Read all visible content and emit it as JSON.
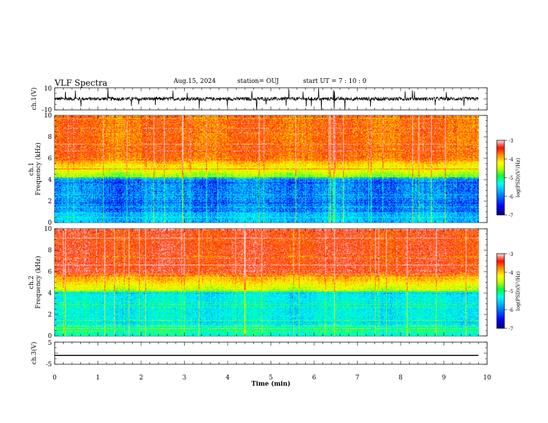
{
  "header": {
    "title": "VLF Spectra",
    "date": "Aug.15, 2024",
    "station": "station= OUJ",
    "start": "start  UT  =   7  : 10 : 0"
  },
  "chart_data": [
    {
      "type": "line",
      "name": "ch1-waveform",
      "ylabel": "ch.1(V)",
      "ylim": [
        -10,
        10
      ],
      "yticks": [
        "10",
        "-10"
      ],
      "xlim": [
        0,
        10
      ],
      "data_extent_x": 9.8
    },
    {
      "type": "heatmap",
      "name": "ch1-spectrogram",
      "ylabel_line1": "ch.1",
      "ylabel_line2": "Frequency  (kHz)",
      "ylim": [
        0,
        10
      ],
      "yticks": [
        0,
        2,
        4,
        6,
        8,
        10
      ],
      "xlim": [
        0,
        10
      ],
      "data_extent_x": 9.8,
      "colorbar": {
        "label": "log(PSD)(V²/Hz)",
        "range": [
          -7,
          -3
        ],
        "ticks": [
          "-3",
          "-4",
          "-5",
          "-6",
          "-7"
        ]
      }
    },
    {
      "type": "heatmap",
      "name": "ch2-spectrogram",
      "ylabel_line1": "ch.2",
      "ylabel_line2": "Frequency  (kHz)",
      "ylim": [
        0,
        10
      ],
      "yticks": [
        0,
        2,
        4,
        6,
        8,
        10
      ],
      "xlim": [
        0,
        10
      ],
      "data_extent_x": 9.8,
      "colorbar": {
        "label": "log(PSD)(V²/Hz)",
        "range": [
          -7,
          -3
        ],
        "ticks": [
          "-3",
          "-4",
          "-5",
          "-6",
          "-7"
        ]
      }
    },
    {
      "type": "line",
      "name": "ch3-waveform",
      "ylabel": "ch.3(V)",
      "ylim": [
        -5,
        5
      ],
      "yticks": [
        "5",
        "-5"
      ],
      "xlim": [
        0,
        10
      ],
      "constant_value": -1.0
    }
  ],
  "xaxis": {
    "label": "Time  (min)",
    "ticks": [
      "0",
      "1",
      "2",
      "3",
      "4",
      "5",
      "6",
      "7",
      "8",
      "9",
      "10"
    ]
  },
  "colors": {
    "spectro_scale": [
      "#000070",
      "#0000ff",
      "#00b0ff",
      "#00ffff",
      "#00ff60",
      "#c0ff00",
      "#ffff00",
      "#ffa000",
      "#ff2000",
      "#ffd0d0"
    ]
  }
}
